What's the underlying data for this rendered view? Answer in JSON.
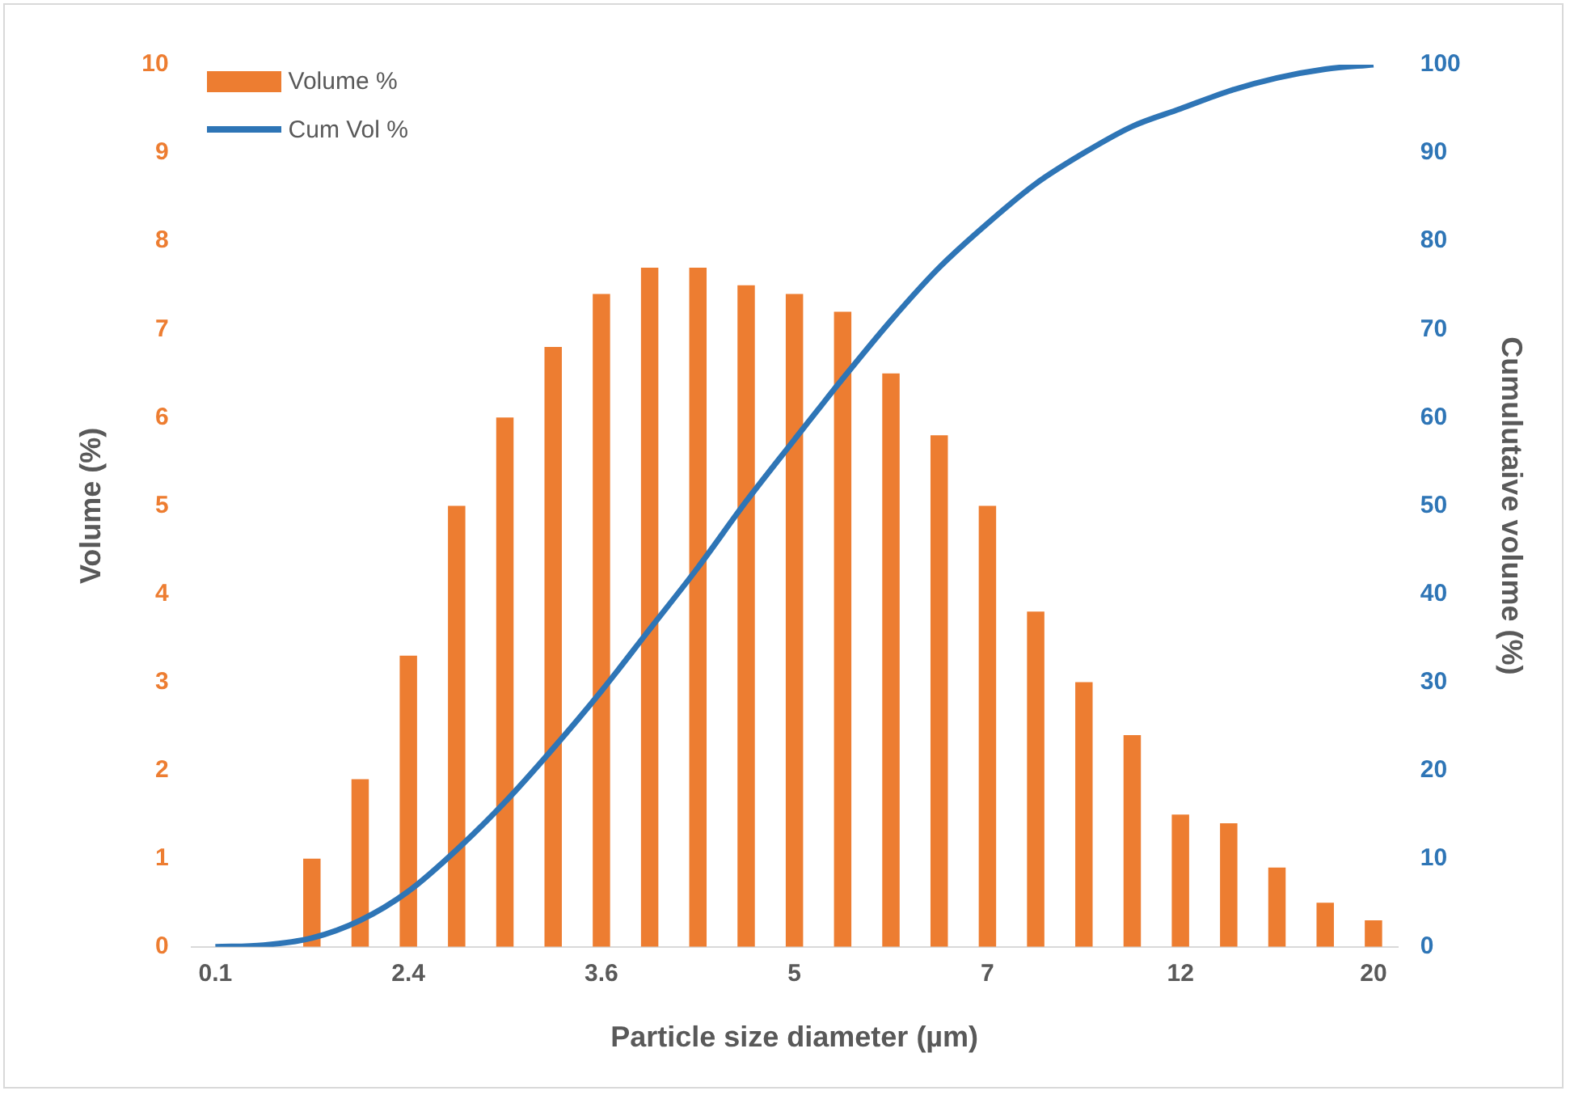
{
  "chart_data": {
    "type": "bar",
    "xlabel": "Particle size diameter (µm)",
    "ylabel": "Volume (%)",
    "y2label": "Cumulutaive volume (%)",
    "categories": [
      "0.1",
      null,
      null,
      null,
      "2.4",
      null,
      null,
      null,
      "3.6",
      null,
      null,
      null,
      "5",
      null,
      null,
      null,
      "7",
      null,
      null,
      null,
      "12",
      null,
      null,
      null,
      "20"
    ],
    "series": [
      {
        "name": "Volume %",
        "color": "#ed7d31",
        "values": [
          0,
          0,
          1.0,
          1.9,
          3.3,
          5.0,
          6.0,
          6.8,
          7.4,
          7.7,
          7.7,
          7.5,
          7.4,
          7.2,
          6.5,
          5.8,
          5.0,
          3.8,
          3.0,
          2.4,
          1.5,
          1.4,
          0.9,
          0.5,
          0.3
        ]
      },
      {
        "name": "Cum Vol %",
        "type": "line",
        "axis": "y2",
        "color": "#2e75b6",
        "values": [
          0,
          0.2,
          1,
          3,
          6.3,
          11,
          16.4,
          22.5,
          29,
          36,
          43,
          50.5,
          57.5,
          64.4,
          71,
          77,
          82,
          86.5,
          90,
          93,
          95,
          97,
          98.5,
          99.5,
          100
        ]
      }
    ],
    "ylim": [
      0,
      10
    ],
    "yticks": [
      0,
      1,
      2,
      3,
      4,
      5,
      6,
      7,
      8,
      9,
      10
    ],
    "y2lim": [
      0,
      100
    ],
    "y2ticks": [
      0,
      10,
      20,
      30,
      40,
      50,
      60,
      70,
      80,
      90,
      100
    ],
    "grid": false,
    "legend": "top left",
    "marker": "none"
  }
}
